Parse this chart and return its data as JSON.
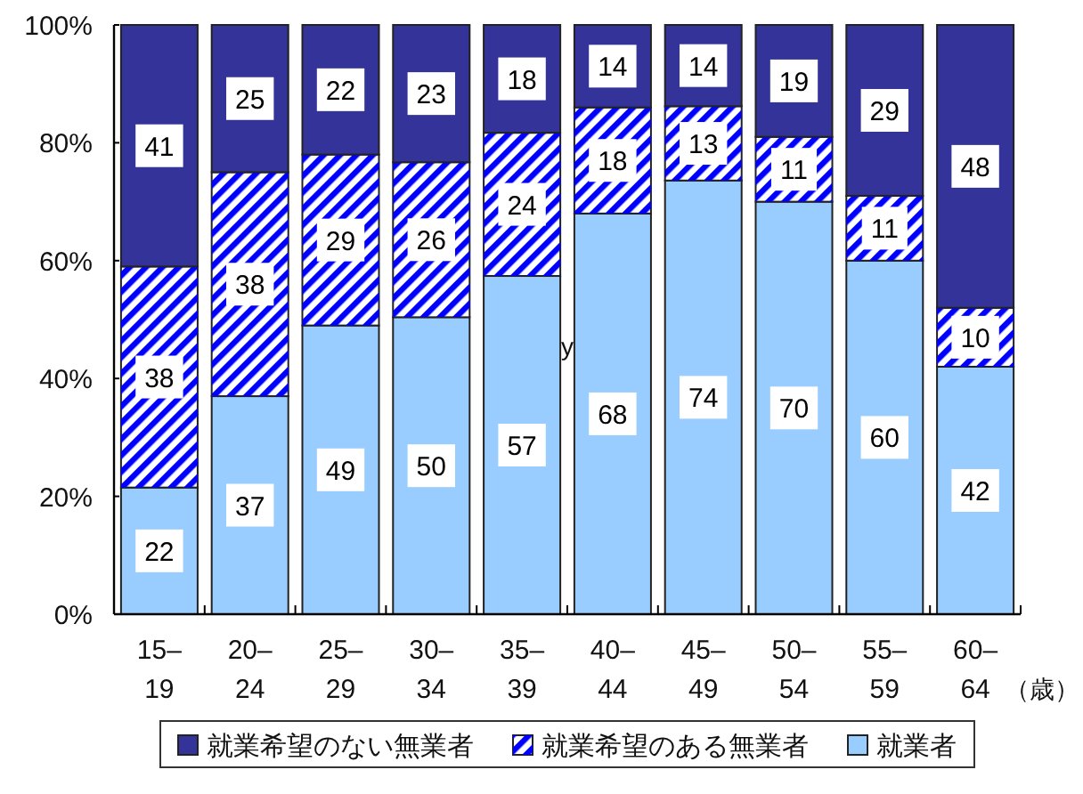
{
  "chart_data": {
    "type": "bar",
    "stacked": true,
    "categories": [
      "15–\n19",
      "20–\n24",
      "25–\n29",
      "30–\n34",
      "35–\n39",
      "40–\n44",
      "45–\n49",
      "50–\n54",
      "55–\n59",
      "60–\n64"
    ],
    "xlabel": "（歳）",
    "ylim": [
      0,
      100
    ],
    "yticks": [
      {
        "value": 0,
        "label": "0%"
      },
      {
        "value": 20,
        "label": "20%"
      },
      {
        "value": 40,
        "label": "40%"
      },
      {
        "value": 60,
        "label": "60%"
      },
      {
        "value": 80,
        "label": "80%"
      },
      {
        "value": 100,
        "label": "100%"
      }
    ],
    "series": [
      {
        "name": "就業者",
        "color": "#99ccff",
        "values": [
          21.5,
          37,
          49,
          50.4,
          57.4,
          68,
          73.6,
          70,
          60,
          42
        ],
        "value_labels": [
          "22",
          "37",
          "49",
          "50",
          "57",
          "68",
          "74",
          "70",
          "60",
          "42"
        ]
      },
      {
        "name": "就業希望のある無業者",
        "color": "#0000ff",
        "values": [
          37.5,
          38,
          29,
          26.3,
          24.3,
          18,
          12.6,
          11,
          11,
          10
        ],
        "value_labels": [
          "38",
          "38",
          "29",
          "26",
          "24",
          "18",
          "13",
          "11",
          "11",
          "10"
        ]
      },
      {
        "name": "就業希望のない無業者",
        "color": "#333399",
        "values": [
          41,
          25,
          22,
          23.3,
          18.3,
          14,
          13.8,
          19,
          29,
          48
        ],
        "value_labels": [
          "41",
          "25",
          "22",
          "23",
          "18",
          "14",
          "14",
          "19",
          "29",
          "48"
        ]
      }
    ],
    "legend": "bottom",
    "annotations": [
      "y"
    ]
  }
}
